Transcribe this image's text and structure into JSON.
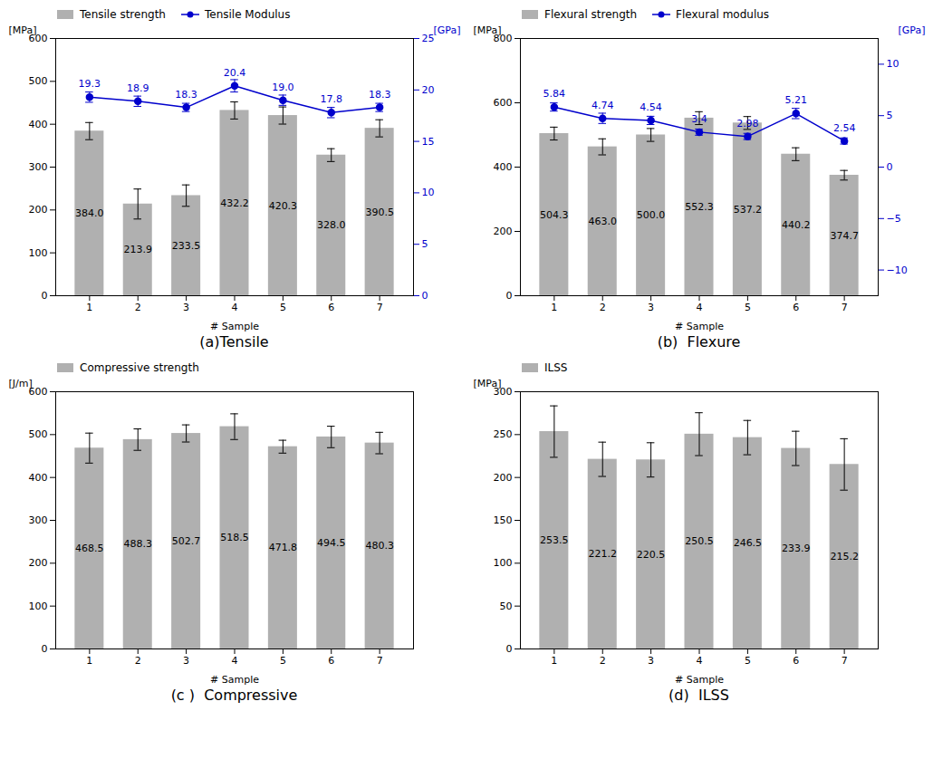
{
  "chart_data": [
    {
      "type": "bar",
      "title": "(a)Tensile",
      "x": [
        1,
        2,
        3,
        4,
        5,
        6,
        7
      ],
      "xlim": [
        0.3,
        7.7
      ],
      "xticks": [
        1,
        2,
        3,
        4,
        5,
        6,
        7
      ],
      "xlabel": "# Sample",
      "ylabel": "[MPa]",
      "ylim": [
        0,
        600
      ],
      "yticks": [
        0,
        100,
        200,
        300,
        400,
        500,
        600
      ],
      "y2label": "[GPa]",
      "y2lim": [
        0,
        25
      ],
      "y2ticks": [
        0,
        5,
        10,
        15,
        20,
        25
      ],
      "legend": "upper left",
      "data_labels": true,
      "series": [
        {
          "name": "Tensile strength",
          "type": "bar",
          "color": "#b0b0b0",
          "values": [
            384.0,
            213.9,
            233.5,
            432.2,
            420.3,
            328.0,
            390.5
          ],
          "value_labels": [
            "384.0",
            "213.9",
            "233.5",
            "432.2",
            "420.3",
            "328.0",
            "390.5"
          ],
          "errors": [
            20,
            35,
            25,
            20,
            20,
            15,
            20
          ]
        },
        {
          "name": "Tensile Modulus",
          "type": "line",
          "axis": "y2",
          "color": "#0000cc",
          "marker": "circle",
          "values": [
            19.3,
            18.9,
            18.3,
            20.4,
            19.0,
            17.8,
            18.3
          ],
          "value_labels": [
            "19.3",
            "18.9",
            "18.3",
            "20.4",
            "19.0",
            "17.8",
            "18.3"
          ],
          "errors": [
            0.5,
            0.5,
            0.4,
            0.6,
            0.5,
            0.5,
            0.4
          ]
        }
      ]
    },
    {
      "type": "bar",
      "title": "(b)  Flexure",
      "x": [
        1,
        2,
        3,
        4,
        5,
        6,
        7
      ],
      "xlim": [
        0.3,
        7.7
      ],
      "xticks": [
        1,
        2,
        3,
        4,
        5,
        6,
        7
      ],
      "xlabel": "# Sample",
      "ylabel": "[MPa]",
      "ylim": [
        0,
        800
      ],
      "yticks": [
        0,
        200,
        400,
        600,
        800
      ],
      "y2label": "[GPa]",
      "y2lim": [
        -12.5,
        12.5
      ],
      "y2ticks": [
        -10,
        -5,
        0,
        5,
        10
      ],
      "legend": "upper left",
      "data_labels": true,
      "series": [
        {
          "name": "Flexural strength",
          "type": "bar",
          "color": "#b0b0b0",
          "values": [
            504.3,
            463.0,
            500.0,
            552.3,
            537.2,
            440.2,
            374.7
          ],
          "value_labels": [
            "504.3",
            "463.0",
            "500.0",
            "552.3",
            "537.2",
            "440.2",
            "374.7"
          ],
          "errors": [
            20,
            25,
            20,
            20,
            20,
            20,
            15
          ]
        },
        {
          "name": "Flexural modulus",
          "type": "line",
          "axis": "y2",
          "color": "#0000cc",
          "marker": "circle",
          "values": [
            5.84,
            4.74,
            4.54,
            3.4,
            2.98,
            5.21,
            2.54
          ],
          "value_labels": [
            "5.84",
            "4.74",
            "4.54",
            "3.4",
            "2.98",
            "5.21",
            "2.54"
          ],
          "errors": [
            0.4,
            0.5,
            0.4,
            0.3,
            0.3,
            0.5,
            0.3
          ]
        }
      ]
    },
    {
      "type": "bar",
      "title": "(c )  Compressive",
      "x": [
        1,
        2,
        3,
        4,
        5,
        6,
        7
      ],
      "xlim": [
        0.3,
        7.7
      ],
      "xticks": [
        1,
        2,
        3,
        4,
        5,
        6,
        7
      ],
      "xlabel": "# Sample",
      "ylabel": "[J/m]",
      "ylim": [
        0,
        600
      ],
      "yticks": [
        0,
        100,
        200,
        300,
        400,
        500,
        600
      ],
      "legend": "upper left",
      "data_labels": true,
      "series": [
        {
          "name": "Compressive strength",
          "type": "bar",
          "color": "#b0b0b0",
          "values": [
            468.5,
            488.3,
            502.7,
            518.5,
            471.8,
            494.5,
            480.3
          ],
          "value_labels": [
            "468.5",
            "488.3",
            "502.7",
            "518.5",
            "471.8",
            "494.5",
            "480.3"
          ],
          "errors": [
            35,
            25,
            20,
            30,
            15,
            25,
            25
          ]
        }
      ]
    },
    {
      "type": "bar",
      "title": "(d)  ILSS",
      "x": [
        1,
        2,
        3,
        4,
        5,
        6,
        7
      ],
      "xlim": [
        0.3,
        7.7
      ],
      "xticks": [
        1,
        2,
        3,
        4,
        5,
        6,
        7
      ],
      "xlabel": "# Sample",
      "ylabel": "[MPa]",
      "ylim": [
        0,
        300
      ],
      "yticks": [
        0,
        50,
        100,
        150,
        200,
        250,
        300
      ],
      "legend": "upper left",
      "data_labels": true,
      "series": [
        {
          "name": "ILSS",
          "type": "bar",
          "color": "#b0b0b0",
          "values": [
            253.5,
            221.2,
            220.5,
            250.5,
            246.5,
            233.9,
            215.2
          ],
          "value_labels": [
            "253.5",
            "221.2",
            "220.5",
            "250.5",
            "246.5",
            "233.9",
            "215.2"
          ],
          "errors": [
            30,
            20,
            20,
            25,
            20,
            20,
            30
          ]
        }
      ]
    }
  ]
}
